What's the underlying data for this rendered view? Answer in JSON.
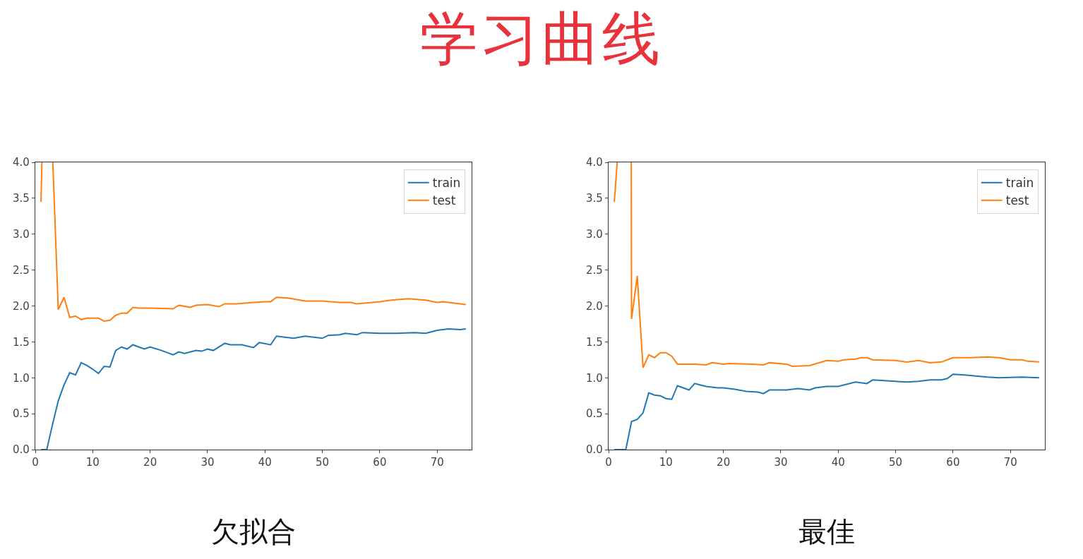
{
  "chart_data": [
    {
      "type": "line",
      "title": "学习曲线",
      "xlabel": "欠拟合",
      "xlim": [
        0,
        76
      ],
      "xticks": [
        0,
        10,
        20,
        30,
        40,
        50,
        60,
        70
      ],
      "ylim": [
        0,
        4
      ],
      "yticks": [
        {
          "value": 0,
          "label": "0.0"
        },
        {
          "value": 0.5,
          "label": "0.5"
        },
        {
          "value": 1,
          "label": "1.0"
        },
        1.5,
        {
          "value": 2,
          "label": "2.0"
        },
        2.5,
        {
          "value": 3,
          "label": "3.0"
        },
        3.5,
        {
          "value": 4,
          "label": "4.0"
        }
      ],
      "grid": false,
      "legend": "top right",
      "marker": "none",
      "line_style": "solid",
      "series": [
        {
          "name": "train",
          "color": "#1f77b4",
          "x": [
            1,
            2,
            3,
            4,
            5,
            6,
            7,
            8,
            9,
            10,
            11,
            12,
            13,
            14,
            15,
            16,
            17,
            18,
            19,
            20,
            22,
            24,
            25,
            26,
            28,
            29,
            30,
            31,
            33,
            34,
            36,
            38,
            39,
            41,
            42,
            45,
            47,
            50,
            51,
            53,
            54,
            56,
            57,
            60,
            63,
            66,
            68,
            70,
            72,
            74,
            75
          ],
          "values": [
            0,
            0,
            0.35,
            0.68,
            0.9,
            1.07,
            1.04,
            1.21,
            1.17,
            1.12,
            1.06,
            1.16,
            1.15,
            1.38,
            1.43,
            1.4,
            1.46,
            1.43,
            1.4,
            1.43,
            1.38,
            1.32,
            1.36,
            1.34,
            1.38,
            1.37,
            1.4,
            1.38,
            1.48,
            1.46,
            1.46,
            1.42,
            1.49,
            1.46,
            1.58,
            1.55,
            1.58,
            1.55,
            1.59,
            1.6,
            1.62,
            1.6,
            1.63,
            1.62,
            1.62,
            1.63,
            1.62,
            1.66,
            1.68,
            1.67,
            1.68
          ]
        },
        {
          "name": "test",
          "color": "#ff7f0e",
          "x": [
            1,
            1.15,
            2,
            3,
            3.05,
            4,
            5,
            6,
            7,
            8,
            9,
            10,
            11,
            12,
            13,
            14,
            15,
            16,
            17,
            18,
            20,
            24,
            25,
            27,
            28,
            30,
            32,
            33,
            35,
            38,
            40,
            41,
            42,
            44,
            47,
            50,
            53,
            55,
            56,
            60,
            62,
            65,
            68,
            70,
            71,
            74,
            75
          ],
          "values": [
            3.45,
            4.0,
            null,
            null,
            4.0,
            1.95,
            2.12,
            1.84,
            1.86,
            1.81,
            1.83,
            1.83,
            1.83,
            1.79,
            1.8,
            1.87,
            1.9,
            1.9,
            1.98,
            1.97,
            1.97,
            1.96,
            2.01,
            1.98,
            2.01,
            2.02,
            1.99,
            2.03,
            2.03,
            2.05,
            2.06,
            2.06,
            2.12,
            2.11,
            2.07,
            2.07,
            2.05,
            2.05,
            2.03,
            2.06,
            2.08,
            2.1,
            2.08,
            2.05,
            2.06,
            2.03,
            2.02
          ]
        }
      ]
    },
    {
      "type": "line",
      "xlabel": "最佳",
      "xlim": [
        0,
        76
      ],
      "xticks": [
        0,
        10,
        20,
        30,
        40,
        50,
        60,
        70
      ],
      "ylim": [
        0,
        4
      ],
      "yticks": [
        {
          "value": 0,
          "label": "0.0"
        },
        {
          "value": 0.5,
          "label": "0.5"
        },
        {
          "value": 1,
          "label": "1.0"
        },
        1.5,
        {
          "value": 2,
          "label": "2.0"
        },
        2.5,
        {
          "value": 3,
          "label": "3.0"
        },
        3.5,
        {
          "value": 4,
          "label": "4.0"
        }
      ],
      "grid": false,
      "legend": "top right",
      "marker": "none",
      "line_style": "solid",
      "series": [
        {
          "name": "train",
          "color": "#1f77b4",
          "x": [
            1,
            2,
            3,
            4,
            5,
            6,
            7,
            8,
            9,
            10,
            11,
            12,
            13,
            14,
            15,
            16,
            17,
            19,
            20,
            22,
            24,
            26,
            27,
            28,
            31,
            33,
            35,
            36,
            38,
            40,
            43,
            45,
            46,
            48,
            52,
            54,
            56,
            58,
            59,
            60,
            62,
            66,
            68,
            72,
            75
          ],
          "values": [
            0,
            0,
            0,
            0.39,
            0.42,
            0.51,
            0.79,
            0.76,
            0.75,
            0.71,
            0.7,
            0.89,
            0.86,
            0.83,
            0.92,
            0.9,
            0.88,
            0.86,
            0.86,
            0.84,
            0.81,
            0.8,
            0.78,
            0.83,
            0.83,
            0.85,
            0.83,
            0.86,
            0.88,
            0.88,
            0.94,
            0.92,
            0.97,
            0.96,
            0.94,
            0.95,
            0.97,
            0.97,
            0.99,
            1.05,
            1.04,
            1.01,
            1.0,
            1.01,
            1.0
          ]
        },
        {
          "name": "test",
          "color": "#ff7f0e",
          "x": [
            1,
            1.5,
            2,
            3,
            3.95,
            4,
            5,
            6,
            7,
            8,
            9,
            10,
            11,
            12,
            13,
            15,
            17,
            18,
            20,
            21,
            25,
            27,
            28,
            31,
            32,
            35,
            38,
            40,
            41,
            43,
            44,
            45,
            46,
            50,
            52,
            54,
            56,
            58,
            60,
            63,
            66,
            68,
            70,
            72,
            73,
            75
          ],
          "values": [
            3.45,
            4.0,
            null,
            null,
            4.0,
            1.82,
            2.42,
            1.14,
            1.32,
            1.28,
            1.35,
            1.35,
            1.3,
            1.19,
            1.19,
            1.19,
            1.18,
            1.21,
            1.19,
            1.2,
            1.19,
            1.18,
            1.21,
            1.19,
            1.16,
            1.17,
            1.24,
            1.23,
            1.25,
            1.26,
            1.28,
            1.28,
            1.25,
            1.24,
            1.22,
            1.24,
            1.21,
            1.22,
            1.28,
            1.28,
            1.29,
            1.28,
            1.25,
            1.25,
            1.23,
            1.22
          ]
        }
      ]
    }
  ]
}
